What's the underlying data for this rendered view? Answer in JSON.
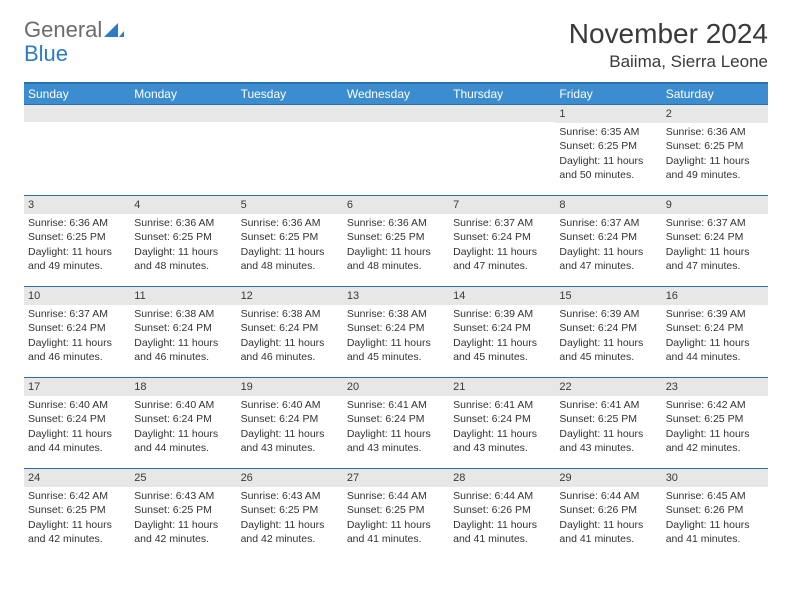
{
  "logo": {
    "textGray": "General",
    "textBlue": "Blue"
  },
  "header": {
    "monthTitle": "November 2024",
    "location": "Baiima, Sierra Leone"
  },
  "colors": {
    "headerBar": "#3c8dcf",
    "borderLine": "#2b70ad",
    "dayNumberBg": "#e7e7e7",
    "textGray": "#6b6b6b",
    "logoBlue": "#2d7bc4",
    "bodyText": "#333333"
  },
  "typography": {
    "monthTitleSize": 28,
    "locationSize": 17,
    "dayHeaderSize": 12,
    "cellTextSize": 10.5
  },
  "dayNames": [
    "Sunday",
    "Monday",
    "Tuesday",
    "Wednesday",
    "Thursday",
    "Friday",
    "Saturday"
  ],
  "weeks": [
    [
      {
        "num": "",
        "lines": []
      },
      {
        "num": "",
        "lines": []
      },
      {
        "num": "",
        "lines": []
      },
      {
        "num": "",
        "lines": []
      },
      {
        "num": "",
        "lines": []
      },
      {
        "num": "1",
        "lines": [
          "Sunrise: 6:35 AM",
          "Sunset: 6:25 PM",
          "Daylight: 11 hours and 50 minutes."
        ]
      },
      {
        "num": "2",
        "lines": [
          "Sunrise: 6:36 AM",
          "Sunset: 6:25 PM",
          "Daylight: 11 hours and 49 minutes."
        ]
      }
    ],
    [
      {
        "num": "3",
        "lines": [
          "Sunrise: 6:36 AM",
          "Sunset: 6:25 PM",
          "Daylight: 11 hours and 49 minutes."
        ]
      },
      {
        "num": "4",
        "lines": [
          "Sunrise: 6:36 AM",
          "Sunset: 6:25 PM",
          "Daylight: 11 hours and 48 minutes."
        ]
      },
      {
        "num": "5",
        "lines": [
          "Sunrise: 6:36 AM",
          "Sunset: 6:25 PM",
          "Daylight: 11 hours and 48 minutes."
        ]
      },
      {
        "num": "6",
        "lines": [
          "Sunrise: 6:36 AM",
          "Sunset: 6:25 PM",
          "Daylight: 11 hours and 48 minutes."
        ]
      },
      {
        "num": "7",
        "lines": [
          "Sunrise: 6:37 AM",
          "Sunset: 6:24 PM",
          "Daylight: 11 hours and 47 minutes."
        ]
      },
      {
        "num": "8",
        "lines": [
          "Sunrise: 6:37 AM",
          "Sunset: 6:24 PM",
          "Daylight: 11 hours and 47 minutes."
        ]
      },
      {
        "num": "9",
        "lines": [
          "Sunrise: 6:37 AM",
          "Sunset: 6:24 PM",
          "Daylight: 11 hours and 47 minutes."
        ]
      }
    ],
    [
      {
        "num": "10",
        "lines": [
          "Sunrise: 6:37 AM",
          "Sunset: 6:24 PM",
          "Daylight: 11 hours and 46 minutes."
        ]
      },
      {
        "num": "11",
        "lines": [
          "Sunrise: 6:38 AM",
          "Sunset: 6:24 PM",
          "Daylight: 11 hours and 46 minutes."
        ]
      },
      {
        "num": "12",
        "lines": [
          "Sunrise: 6:38 AM",
          "Sunset: 6:24 PM",
          "Daylight: 11 hours and 46 minutes."
        ]
      },
      {
        "num": "13",
        "lines": [
          "Sunrise: 6:38 AM",
          "Sunset: 6:24 PM",
          "Daylight: 11 hours and 45 minutes."
        ]
      },
      {
        "num": "14",
        "lines": [
          "Sunrise: 6:39 AM",
          "Sunset: 6:24 PM",
          "Daylight: 11 hours and 45 minutes."
        ]
      },
      {
        "num": "15",
        "lines": [
          "Sunrise: 6:39 AM",
          "Sunset: 6:24 PM",
          "Daylight: 11 hours and 45 minutes."
        ]
      },
      {
        "num": "16",
        "lines": [
          "Sunrise: 6:39 AM",
          "Sunset: 6:24 PM",
          "Daylight: 11 hours and 44 minutes."
        ]
      }
    ],
    [
      {
        "num": "17",
        "lines": [
          "Sunrise: 6:40 AM",
          "Sunset: 6:24 PM",
          "Daylight: 11 hours and 44 minutes."
        ]
      },
      {
        "num": "18",
        "lines": [
          "Sunrise: 6:40 AM",
          "Sunset: 6:24 PM",
          "Daylight: 11 hours and 44 minutes."
        ]
      },
      {
        "num": "19",
        "lines": [
          "Sunrise: 6:40 AM",
          "Sunset: 6:24 PM",
          "Daylight: 11 hours and 43 minutes."
        ]
      },
      {
        "num": "20",
        "lines": [
          "Sunrise: 6:41 AM",
          "Sunset: 6:24 PM",
          "Daylight: 11 hours and 43 minutes."
        ]
      },
      {
        "num": "21",
        "lines": [
          "Sunrise: 6:41 AM",
          "Sunset: 6:24 PM",
          "Daylight: 11 hours and 43 minutes."
        ]
      },
      {
        "num": "22",
        "lines": [
          "Sunrise: 6:41 AM",
          "Sunset: 6:25 PM",
          "Daylight: 11 hours and 43 minutes."
        ]
      },
      {
        "num": "23",
        "lines": [
          "Sunrise: 6:42 AM",
          "Sunset: 6:25 PM",
          "Daylight: 11 hours and 42 minutes."
        ]
      }
    ],
    [
      {
        "num": "24",
        "lines": [
          "Sunrise: 6:42 AM",
          "Sunset: 6:25 PM",
          "Daylight: 11 hours and 42 minutes."
        ]
      },
      {
        "num": "25",
        "lines": [
          "Sunrise: 6:43 AM",
          "Sunset: 6:25 PM",
          "Daylight: 11 hours and 42 minutes."
        ]
      },
      {
        "num": "26",
        "lines": [
          "Sunrise: 6:43 AM",
          "Sunset: 6:25 PM",
          "Daylight: 11 hours and 42 minutes."
        ]
      },
      {
        "num": "27",
        "lines": [
          "Sunrise: 6:44 AM",
          "Sunset: 6:25 PM",
          "Daylight: 11 hours and 41 minutes."
        ]
      },
      {
        "num": "28",
        "lines": [
          "Sunrise: 6:44 AM",
          "Sunset: 6:26 PM",
          "Daylight: 11 hours and 41 minutes."
        ]
      },
      {
        "num": "29",
        "lines": [
          "Sunrise: 6:44 AM",
          "Sunset: 6:26 PM",
          "Daylight: 11 hours and 41 minutes."
        ]
      },
      {
        "num": "30",
        "lines": [
          "Sunrise: 6:45 AM",
          "Sunset: 6:26 PM",
          "Daylight: 11 hours and 41 minutes."
        ]
      }
    ]
  ]
}
